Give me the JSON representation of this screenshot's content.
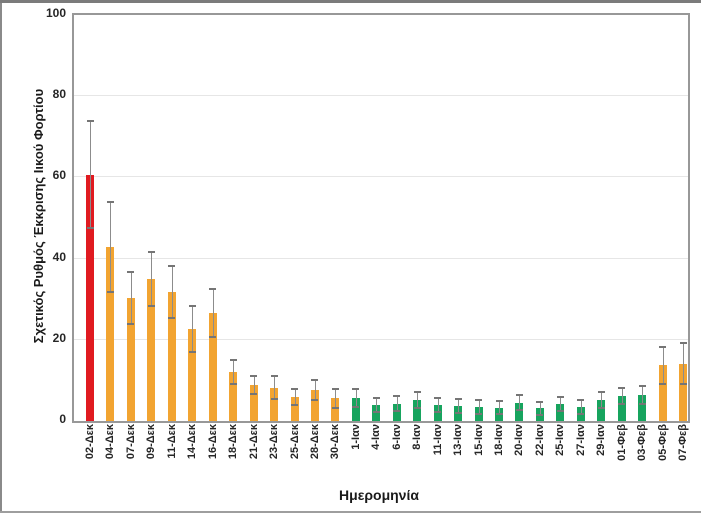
{
  "frame": {
    "background": "#ffffff",
    "top_border_color": "#7b7b7b",
    "plot_border_color": "#989898",
    "gridline_color": "#e6e6e6",
    "error_bar_color": "#8c8c8c"
  },
  "chart_data": {
    "type": "bar",
    "title": "",
    "xlabel": "Ημερομηνία",
    "ylabel": "Σχετικός Ρυθμός Έκκρισης Ιικού Φορτίου",
    "ylim": [
      0,
      100
    ],
    "yticks": [
      0,
      20,
      40,
      60,
      80,
      100
    ],
    "grid": true,
    "legend": "none",
    "error_bars": true,
    "palette": {
      "red": "#e01a20",
      "orange": "#f2a431",
      "green": "#17a45e"
    },
    "categories": [
      "02-Δεκ",
      "04-Δεκ",
      "07-Δεκ",
      "09-Δεκ",
      "11-Δεκ",
      "14-Δεκ",
      "16-Δεκ",
      "18-Δεκ",
      "21-Δεκ",
      "23-Δεκ",
      "25-Δεκ",
      "28-Δεκ",
      "30-Δεκ",
      "1-Ιαν",
      "4-Ιαν",
      "6-Ιαν",
      "8-Ιαν",
      "11-Ιαν",
      "13-Ιαν",
      "15-Ιαν",
      "18-Ιαν",
      "20-Ιαν",
      "22-Ιαν",
      "25-Ιαν",
      "27-Ιαν",
      "29-Ιαν",
      "01-Φεβ",
      "03-Φεβ",
      "05-Φεβ",
      "07-Φεβ"
    ],
    "values": [
      60.7,
      42.8,
      30.3,
      35.0,
      31.7,
      22.7,
      26.6,
      12.1,
      8.9,
      8.2,
      5.9,
      7.6,
      5.6,
      5.7,
      3.9,
      4.3,
      5.1,
      4.0,
      3.7,
      3.5,
      3.3,
      4.5,
      3.2,
      4.2,
      3.4,
      5.1,
      6.2,
      6.5,
      13.7,
      14.1
    ],
    "errors": [
      13.2,
      11.1,
      6.5,
      6.7,
      6.4,
      5.7,
      5.8,
      3.0,
      2.3,
      2.8,
      2.0,
      2.5,
      2.3,
      2.3,
      1.8,
      1.8,
      2.0,
      1.7,
      1.7,
      1.7,
      1.6,
      1.8,
      1.6,
      1.8,
      1.7,
      2.0,
      2.0,
      2.2,
      4.5,
      5.0
    ],
    "bar_colors": [
      "red",
      "orange",
      "orange",
      "orange",
      "orange",
      "orange",
      "orange",
      "orange",
      "orange",
      "orange",
      "orange",
      "orange",
      "orange",
      "green",
      "green",
      "green",
      "green",
      "green",
      "green",
      "green",
      "green",
      "green",
      "green",
      "green",
      "green",
      "green",
      "green",
      "green",
      "orange",
      "orange"
    ]
  }
}
